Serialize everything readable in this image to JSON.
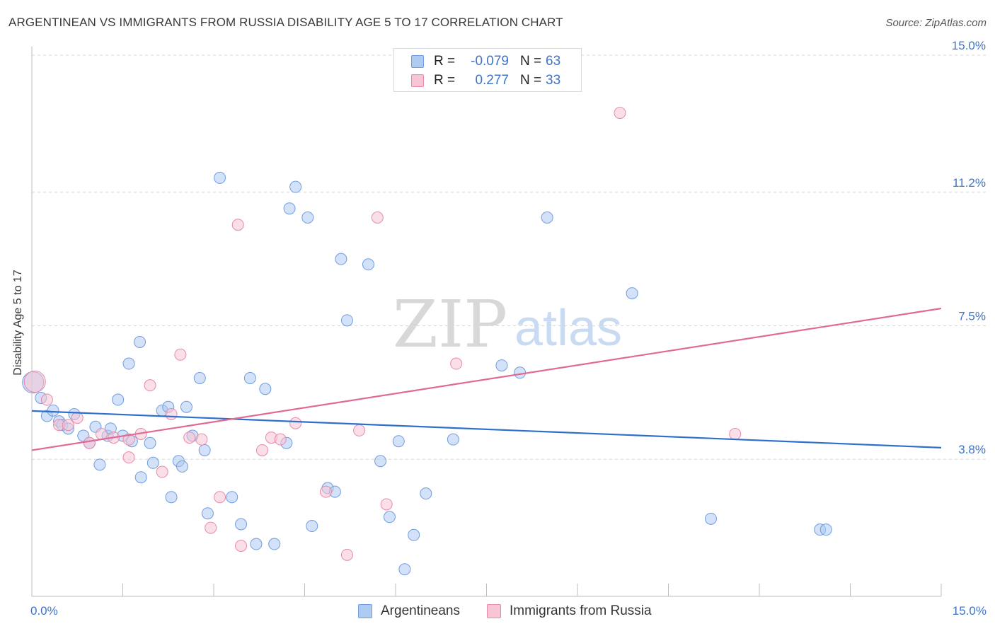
{
  "header": {
    "title": "ARGENTINEAN VS IMMIGRANTS FROM RUSSIA DISABILITY AGE 5 TO 17 CORRELATION CHART",
    "source": "Source: ZipAtlas.com"
  },
  "watermark": {
    "zip": "ZIP",
    "atlas": "atlas"
  },
  "legend": {
    "rows": [
      {
        "r_label": "R =",
        "r_value": "-0.079",
        "n_label": "N =",
        "n_value": "63",
        "color": "#aecbf2",
        "border": "#6f9de0"
      },
      {
        "r_label": "R =",
        "r_value": "0.277",
        "n_label": "N =",
        "n_value": "33",
        "color": "#f8c5d5",
        "border": "#e88aa8"
      }
    ]
  },
  "bottom_legend": {
    "items": [
      {
        "label": "Argentineans",
        "color": "#aecbf2",
        "border": "#6f9de0"
      },
      {
        "label": "Immigrants from Russia",
        "color": "#f8c5d5",
        "border": "#e88aa8"
      }
    ]
  },
  "chart_data": {
    "type": "scatter",
    "title": "ARGENTINEAN VS IMMIGRANTS FROM RUSSIA DISABILITY AGE 5 TO 17 CORRELATION CHART",
    "xlabel": "",
    "ylabel": "Disability Age 5 to 17",
    "xlim": [
      0,
      15
    ],
    "ylim": [
      0,
      15
    ],
    "x_tick_labels": [
      {
        "value": 0,
        "label": "0.0%"
      },
      {
        "value": 15,
        "label": "15.0%"
      }
    ],
    "y_tick_labels": [
      {
        "value": 3.8,
        "label": "3.8%"
      },
      {
        "value": 7.5,
        "label": "7.5%"
      },
      {
        "value": 11.2,
        "label": "11.2%"
      },
      {
        "value": 15,
        "label": "15.0%"
      }
    ],
    "grid": true,
    "legend_position": "top-center",
    "series": [
      {
        "name": "Argentineans",
        "color": "#6f9de0",
        "fill": "#aecbf2",
        "trend_color": "#2f6fcc",
        "trend": {
          "x": [
            0,
            15
          ],
          "y": [
            5.14,
            4.12
          ]
        },
        "points": [
          [
            0.02,
            5.93
          ],
          [
            0.15,
            5.5
          ],
          [
            0.25,
            5.0
          ],
          [
            0.35,
            5.15
          ],
          [
            0.45,
            4.85
          ],
          [
            0.5,
            4.75
          ],
          [
            0.6,
            4.65
          ],
          [
            0.7,
            5.05
          ],
          [
            0.85,
            4.45
          ],
          [
            0.95,
            4.25
          ],
          [
            1.05,
            4.7
          ],
          [
            1.12,
            3.65
          ],
          [
            1.25,
            4.45
          ],
          [
            1.3,
            4.65
          ],
          [
            1.42,
            5.45
          ],
          [
            1.5,
            4.45
          ],
          [
            1.6,
            6.45
          ],
          [
            1.65,
            4.3
          ],
          [
            1.78,
            7.05
          ],
          [
            1.8,
            3.3
          ],
          [
            1.95,
            4.25
          ],
          [
            2.0,
            3.7
          ],
          [
            2.15,
            5.15
          ],
          [
            2.25,
            5.25
          ],
          [
            2.3,
            2.75
          ],
          [
            2.42,
            3.75
          ],
          [
            2.48,
            3.6
          ],
          [
            2.55,
            5.25
          ],
          [
            2.65,
            4.45
          ],
          [
            2.77,
            6.05
          ],
          [
            2.85,
            4.05
          ],
          [
            2.9,
            2.3
          ],
          [
            3.1,
            11.6
          ],
          [
            3.3,
            2.75
          ],
          [
            3.45,
            2.0
          ],
          [
            3.6,
            6.05
          ],
          [
            3.7,
            1.45
          ],
          [
            3.85,
            5.75
          ],
          [
            4.0,
            1.45
          ],
          [
            4.2,
            4.25
          ],
          [
            4.25,
            10.75
          ],
          [
            4.35,
            11.35
          ],
          [
            4.55,
            10.5
          ],
          [
            4.62,
            1.95
          ],
          [
            4.88,
            3.0
          ],
          [
            5.0,
            2.9
          ],
          [
            5.1,
            9.35
          ],
          [
            5.2,
            7.65
          ],
          [
            5.55,
            9.2
          ],
          [
            5.75,
            3.75
          ],
          [
            5.9,
            2.2
          ],
          [
            6.05,
            4.3
          ],
          [
            6.15,
            0.75
          ],
          [
            6.3,
            1.7
          ],
          [
            6.5,
            2.85
          ],
          [
            6.95,
            4.35
          ],
          [
            7.75,
            6.4
          ],
          [
            8.05,
            6.2
          ],
          [
            8.5,
            10.5
          ],
          [
            9.9,
            8.4
          ],
          [
            11.2,
            2.15
          ],
          [
            13.0,
            1.85
          ],
          [
            13.1,
            1.85
          ]
        ]
      },
      {
        "name": "Immigrants from Russia",
        "color": "#e88aa8",
        "fill": "#f8c5d5",
        "trend_color": "#e06a94",
        "trend": {
          "x": [
            0,
            15
          ],
          "y": [
            4.05,
            7.98
          ]
        },
        "points": [
          [
            0.05,
            5.95
          ],
          [
            0.25,
            5.45
          ],
          [
            0.45,
            4.75
          ],
          [
            0.6,
            4.75
          ],
          [
            0.75,
            4.95
          ],
          [
            0.95,
            4.25
          ],
          [
            1.15,
            4.5
          ],
          [
            1.35,
            4.4
          ],
          [
            1.6,
            4.35
          ],
          [
            1.8,
            4.5
          ],
          [
            1.6,
            3.85
          ],
          [
            1.95,
            5.85
          ],
          [
            2.15,
            3.45
          ],
          [
            2.3,
            5.05
          ],
          [
            2.45,
            6.7
          ],
          [
            2.6,
            4.4
          ],
          [
            2.8,
            4.35
          ],
          [
            2.95,
            1.9
          ],
          [
            3.1,
            2.75
          ],
          [
            3.4,
            10.3
          ],
          [
            3.45,
            1.4
          ],
          [
            3.8,
            4.05
          ],
          [
            3.95,
            4.4
          ],
          [
            4.1,
            4.35
          ],
          [
            4.35,
            4.8
          ],
          [
            4.85,
            2.9
          ],
          [
            5.2,
            1.15
          ],
          [
            5.4,
            4.6
          ],
          [
            5.7,
            10.5
          ],
          [
            5.85,
            2.55
          ],
          [
            7.0,
            6.45
          ],
          [
            9.7,
            13.4
          ],
          [
            11.6,
            4.5
          ]
        ]
      }
    ]
  }
}
